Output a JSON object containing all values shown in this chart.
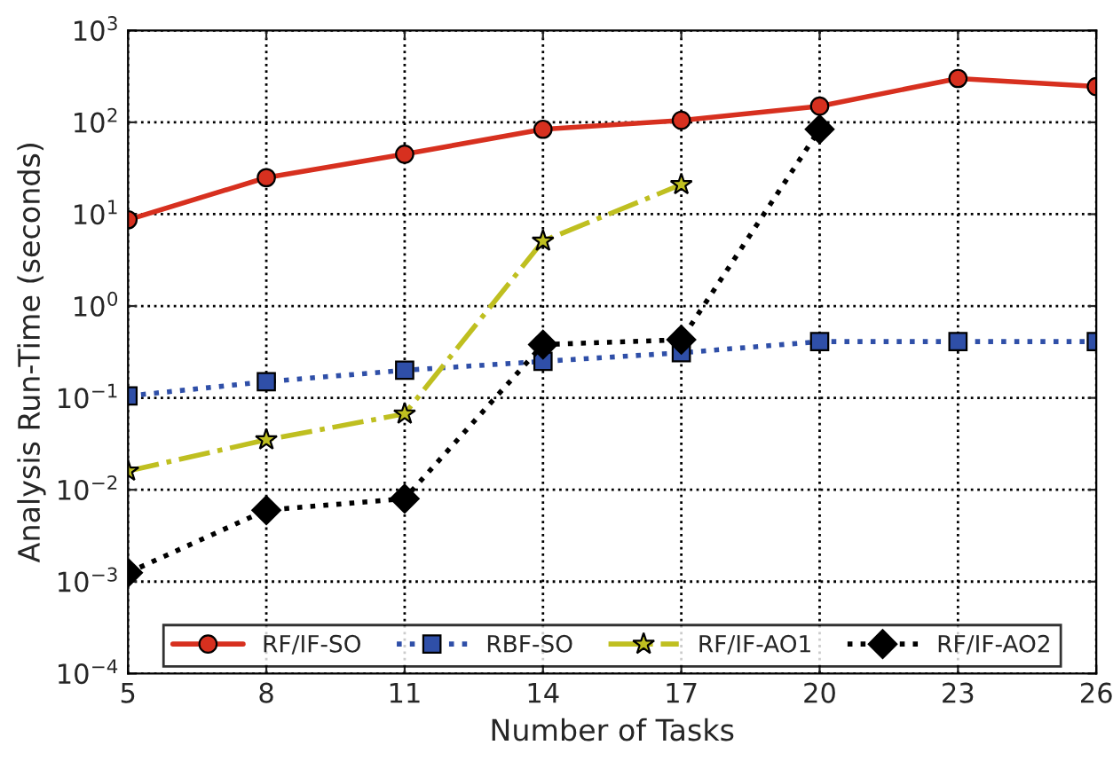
{
  "chart_data": {
    "type": "line",
    "xlabel": "Number of Tasks",
    "ylabel": "Analysis Run-Time (seconds)",
    "log": "y",
    "grid": true,
    "legend": "bottom",
    "xlim": [
      5,
      26
    ],
    "xticks": [
      5,
      8,
      11,
      14,
      17,
      20,
      23,
      26
    ],
    "ylim": [
      0.0001,
      1000
    ],
    "yticks": [
      {
        "value": 0.0001,
        "label": "10$^{−4}$"
      },
      {
        "value": 0.001,
        "label": "10$^{−3}$"
      },
      {
        "value": 0.01,
        "label": "10$^{−2}$"
      },
      {
        "value": 0.1,
        "label": "10$^{−1}$"
      },
      {
        "value": 1,
        "label": "10$^{0}$"
      },
      {
        "value": 10,
        "label": "10$^{1}$"
      },
      {
        "value": 100,
        "label": "10$^{2}$"
      },
      {
        "value": 1000,
        "label": "10$^{3}$"
      }
    ],
    "series": [
      {
        "name": "RF/IF-SO",
        "color": "#d7301f",
        "marker": "circle",
        "line_style": "solid",
        "x": [
          5,
          8,
          11,
          14,
          17,
          20,
          23,
          26
        ],
        "values": [
          8.7,
          25,
          45,
          84,
          105,
          150,
          300,
          245
        ]
      },
      {
        "name": "RBF-SO",
        "color": "#2f4fa8",
        "marker": "square",
        "line_style": "dotted",
        "x": [
          5,
          8,
          11,
          14,
          17,
          20,
          23,
          26
        ],
        "values": [
          0.105,
          0.15,
          0.2,
          0.25,
          0.31,
          0.41,
          0.41,
          0.41
        ]
      },
      {
        "name": "RF/IF-AO1",
        "color": "#bfbf20",
        "marker": "star",
        "line_style": "dashed",
        "x": [
          5,
          8,
          11,
          14,
          17
        ],
        "values": [
          0.016,
          0.035,
          0.067,
          5.1,
          21
        ]
      },
      {
        "name": "RF/IF-AO2",
        "color": "#000000",
        "marker": "diamond",
        "line_style": "dotted",
        "x": [
          5,
          8,
          11,
          14,
          17,
          20
        ],
        "values": [
          0.00125,
          0.006,
          0.008,
          0.38,
          0.43,
          84
        ]
      }
    ]
  }
}
